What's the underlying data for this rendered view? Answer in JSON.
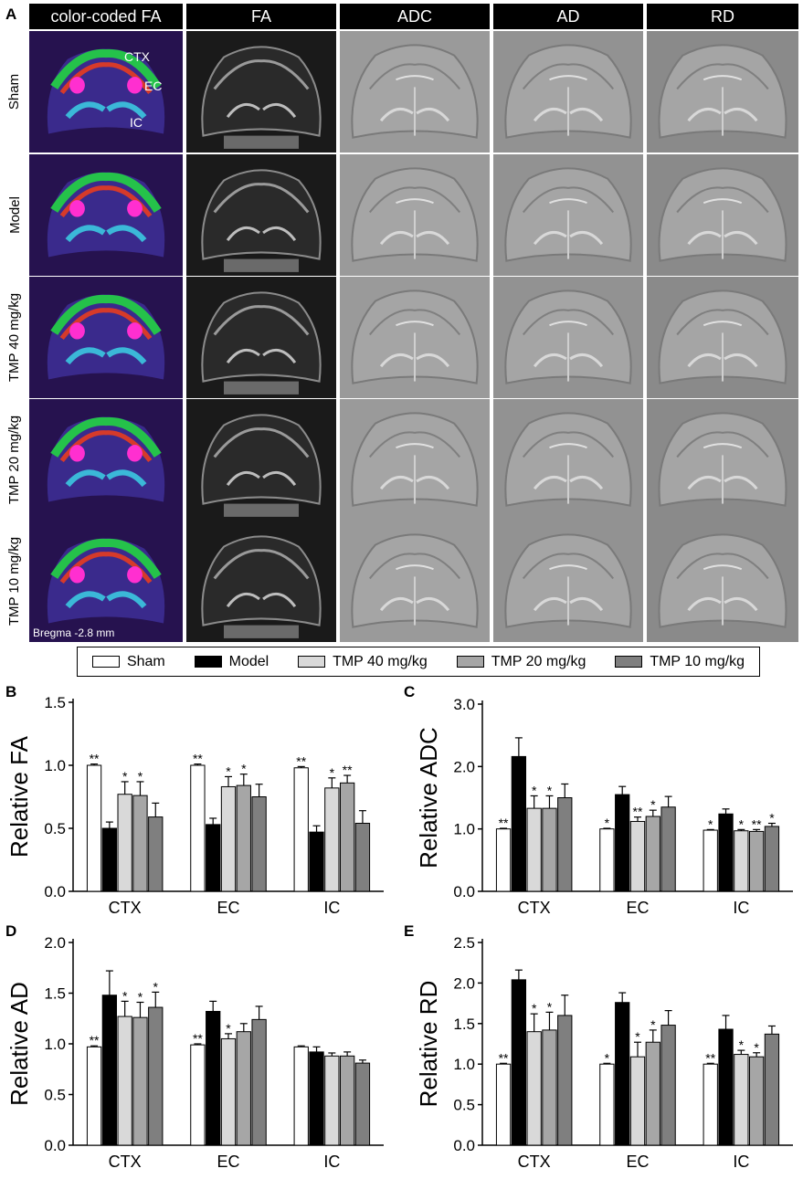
{
  "panel_a": {
    "letter": "A",
    "columns": [
      "color-coded FA",
      "FA",
      "ADC",
      "AD",
      "RD"
    ],
    "rows": [
      "Sham",
      "Model",
      "TMP 40 mg/kg",
      "TMP 20 mg/kg",
      "TMP 10 mg/kg"
    ],
    "region_labels": [
      "CTX",
      "EC",
      "IC"
    ],
    "bregma": "Bregma -2.8 mm"
  },
  "legend": {
    "items": [
      {
        "label": "Sham",
        "color": "#ffffff"
      },
      {
        "label": "Model",
        "color": "#000000"
      },
      {
        "label": "TMP 40 mg/kg",
        "color": "#d9d9d9"
      },
      {
        "label": "TMP 20 mg/kg",
        "color": "#a6a6a6"
      },
      {
        "label": "TMP 10 mg/kg",
        "color": "#7f7f7f"
      }
    ]
  },
  "chart_data": [
    {
      "panel": "B",
      "type": "bar",
      "ylabel": "Relative FA",
      "categories": [
        "CTX",
        "EC",
        "IC"
      ],
      "ylim": [
        0,
        1.5
      ],
      "yticks": [
        "0.0",
        "0.5",
        "1.0",
        "1.5"
      ],
      "series": [
        {
          "name": "Sham",
          "values": [
            1.0,
            1.0,
            0.98
          ],
          "errors": [
            0.01,
            0.01,
            0.01
          ],
          "sig": [
            "**",
            "**",
            "**"
          ]
        },
        {
          "name": "Model",
          "values": [
            0.5,
            0.53,
            0.47
          ],
          "errors": [
            0.05,
            0.05,
            0.05
          ],
          "sig": [
            "",
            "",
            ""
          ]
        },
        {
          "name": "TMP 40 mg/kg",
          "values": [
            0.77,
            0.83,
            0.82
          ],
          "errors": [
            0.1,
            0.08,
            0.08
          ],
          "sig": [
            "*",
            "*",
            "*"
          ]
        },
        {
          "name": "TMP 20 mg/kg",
          "values": [
            0.76,
            0.84,
            0.86
          ],
          "errors": [
            0.11,
            0.09,
            0.06
          ],
          "sig": [
            "*",
            "*",
            "**"
          ]
        },
        {
          "name": "TMP 10 mg/kg",
          "values": [
            0.59,
            0.75,
            0.54
          ],
          "errors": [
            0.11,
            0.1,
            0.1
          ],
          "sig": [
            "",
            "",
            ""
          ]
        }
      ]
    },
    {
      "panel": "C",
      "type": "bar",
      "ylabel": "Relative ADC",
      "categories": [
        "CTX",
        "EC",
        "IC"
      ],
      "ylim": [
        0,
        3.0
      ],
      "yticks": [
        "0.0",
        "1.0",
        "2.0",
        "3.0"
      ],
      "series": [
        {
          "name": "Sham",
          "values": [
            1.0,
            1.0,
            0.98
          ],
          "errors": [
            0.01,
            0.01,
            0.01
          ],
          "sig": [
            "**",
            "*",
            "*"
          ]
        },
        {
          "name": "Model",
          "values": [
            2.16,
            1.55,
            1.24
          ],
          "errors": [
            0.3,
            0.13,
            0.08
          ],
          "sig": [
            "",
            "",
            ""
          ]
        },
        {
          "name": "TMP 40 mg/kg",
          "values": [
            1.33,
            1.12,
            0.97
          ],
          "errors": [
            0.2,
            0.07,
            0.02
          ],
          "sig": [
            "*",
            "**",
            "*"
          ]
        },
        {
          "name": "TMP 20 mg/kg",
          "values": [
            1.33,
            1.2,
            0.96
          ],
          "errors": [
            0.2,
            0.1,
            0.03
          ],
          "sig": [
            "*",
            "*",
            "**"
          ]
        },
        {
          "name": "TMP 10 mg/kg",
          "values": [
            1.5,
            1.35,
            1.04
          ],
          "errors": [
            0.22,
            0.17,
            0.05
          ],
          "sig": [
            "",
            "",
            "*"
          ]
        }
      ]
    },
    {
      "panel": "D",
      "type": "bar",
      "ylabel": "Relative AD",
      "categories": [
        "CTX",
        "EC",
        "IC"
      ],
      "ylim": [
        0,
        2.0
      ],
      "yticks": [
        "0.0",
        "0.5",
        "1.0",
        "1.5",
        "2.0"
      ],
      "series": [
        {
          "name": "Sham",
          "values": [
            0.97,
            0.99,
            0.97
          ],
          "errors": [
            0.01,
            0.01,
            0.01
          ],
          "sig": [
            "**",
            "**",
            ""
          ]
        },
        {
          "name": "Model",
          "values": [
            1.48,
            1.32,
            0.92
          ],
          "errors": [
            0.24,
            0.1,
            0.05
          ],
          "sig": [
            "",
            "",
            ""
          ]
        },
        {
          "name": "TMP 40 mg/kg",
          "values": [
            1.27,
            1.05,
            0.88
          ],
          "errors": [
            0.15,
            0.05,
            0.03
          ],
          "sig": [
            "*",
            "*",
            ""
          ]
        },
        {
          "name": "TMP 20 mg/kg",
          "values": [
            1.26,
            1.12,
            0.88
          ],
          "errors": [
            0.15,
            0.08,
            0.04
          ],
          "sig": [
            "*",
            "",
            ""
          ]
        },
        {
          "name": "TMP 10 mg/kg",
          "values": [
            1.36,
            1.24,
            0.81
          ],
          "errors": [
            0.15,
            0.13,
            0.03
          ],
          "sig": [
            "*",
            "",
            ""
          ]
        }
      ]
    },
    {
      "panel": "E",
      "type": "bar",
      "ylabel": "Relative RD",
      "categories": [
        "CTX",
        "EC",
        "IC"
      ],
      "ylim": [
        0,
        2.5
      ],
      "yticks": [
        "0.0",
        "0.5",
        "1.0",
        "1.5",
        "2.0",
        "2.5"
      ],
      "series": [
        {
          "name": "Sham",
          "values": [
            1.0,
            1.0,
            1.0
          ],
          "errors": [
            0.01,
            0.01,
            0.01
          ],
          "sig": [
            "**",
            "*",
            "**"
          ]
        },
        {
          "name": "Model",
          "values": [
            2.04,
            1.76,
            1.43
          ],
          "errors": [
            0.12,
            0.12,
            0.17
          ],
          "sig": [
            "",
            "",
            ""
          ]
        },
        {
          "name": "TMP 40 mg/kg",
          "values": [
            1.4,
            1.09,
            1.12
          ],
          "errors": [
            0.22,
            0.18,
            0.05
          ],
          "sig": [
            "*",
            "*",
            "*"
          ]
        },
        {
          "name": "TMP 20 mg/kg",
          "values": [
            1.42,
            1.27,
            1.09
          ],
          "errors": [
            0.22,
            0.15,
            0.05
          ],
          "sig": [
            "*",
            "*",
            "*"
          ]
        },
        {
          "name": "TMP 10 mg/kg",
          "values": [
            1.6,
            1.48,
            1.37
          ],
          "errors": [
            0.25,
            0.18,
            0.1
          ],
          "sig": [
            "",
            "",
            ""
          ]
        }
      ]
    }
  ]
}
